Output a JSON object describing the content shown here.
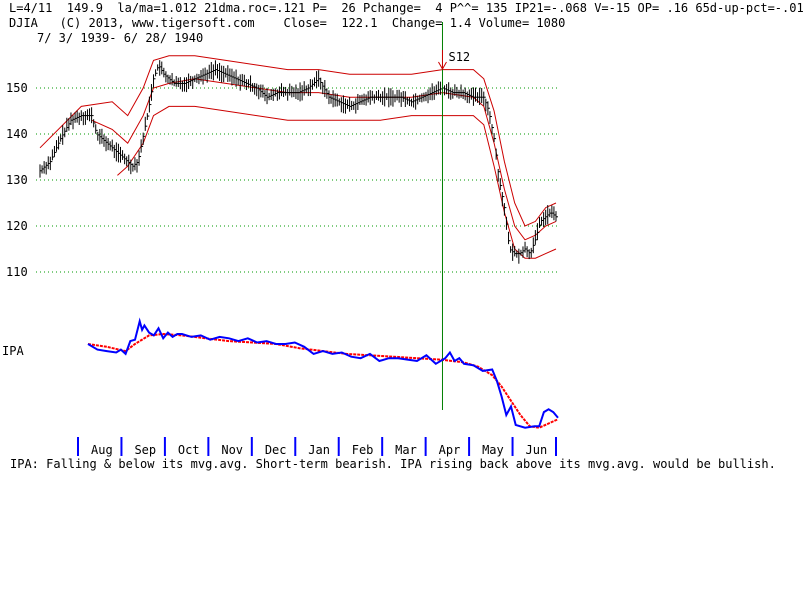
{
  "header": {
    "line1": "L=4/11  149.9  la/ma=1.012 21dma.roc=.121 P=  26 Pchange=  4 P^^= 135 IP21=-.068 V=-15 OP= .16 65d-up-pct=-.01",
    "line2": "DJIA   (C) 2013, www.tigersoft.com    Close=  122.1  Change= 1.4 Volume= 1080",
    "line3": "7/ 3/ 1939- 6/ 28/ 1940"
  },
  "footer": {
    "message": "IPA: Falling & below its mvg.avg. Short-term bearish. IPA rising back above its mvg.avg. would be bullish."
  },
  "colors": {
    "grid": "#009900",
    "bars": "#000000",
    "bands": "#cc0000",
    "ipa": "#0000ff",
    "ipa_ma": "#ff0000",
    "signal_line": "#008000",
    "month_ticks": "#0000ff",
    "signal_arrow": "#cc0000"
  },
  "chart_data": [
    {
      "type": "line",
      "name": "price",
      "ylim": [
        108,
        160
      ],
      "yticks": [
        110,
        120,
        130,
        140,
        150
      ],
      "grid": true,
      "months": [
        "Aug",
        "Sep",
        "Oct",
        "Nov",
        "Dec",
        "Jan",
        "Feb",
        "Mar",
        "Apr",
        "May",
        "Jun"
      ],
      "signal": {
        "label": "S12",
        "x_fraction": 0.78
      },
      "close_points": [
        [
          0.0,
          132
        ],
        [
          0.02,
          134
        ],
        [
          0.04,
          139
        ],
        [
          0.06,
          143
        ],
        [
          0.08,
          144
        ],
        [
          0.1,
          144
        ],
        [
          0.11,
          140
        ],
        [
          0.13,
          138
        ],
        [
          0.15,
          136
        ],
        [
          0.17,
          134
        ],
        [
          0.18,
          133
        ],
        [
          0.19,
          134
        ],
        [
          0.21,
          145
        ],
        [
          0.22,
          152
        ],
        [
          0.23,
          155
        ],
        [
          0.24,
          153
        ],
        [
          0.26,
          151
        ],
        [
          0.28,
          151
        ],
        [
          0.3,
          152
        ],
        [
          0.32,
          153
        ],
        [
          0.34,
          154
        ],
        [
          0.36,
          153
        ],
        [
          0.38,
          152
        ],
        [
          0.4,
          151
        ],
        [
          0.42,
          150
        ],
        [
          0.44,
          148
        ],
        [
          0.46,
          149
        ],
        [
          0.48,
          149
        ],
        [
          0.5,
          149
        ],
        [
          0.52,
          150
        ],
        [
          0.54,
          152
        ],
        [
          0.56,
          148
        ],
        [
          0.58,
          147
        ],
        [
          0.6,
          146
        ],
        [
          0.62,
          147
        ],
        [
          0.64,
          148
        ],
        [
          0.66,
          148
        ],
        [
          0.68,
          148
        ],
        [
          0.7,
          148
        ],
        [
          0.72,
          147
        ],
        [
          0.74,
          148
        ],
        [
          0.76,
          149
        ],
        [
          0.78,
          150
        ],
        [
          0.8,
          149
        ],
        [
          0.82,
          149
        ],
        [
          0.84,
          148
        ],
        [
          0.86,
          148
        ],
        [
          0.87,
          145
        ],
        [
          0.88,
          139
        ],
        [
          0.89,
          130
        ],
        [
          0.9,
          124
        ],
        [
          0.91,
          115
        ],
        [
          0.92,
          114
        ],
        [
          0.93,
          114
        ],
        [
          0.94,
          115
        ],
        [
          0.95,
          114
        ],
        [
          0.96,
          117
        ],
        [
          0.97,
          121
        ],
        [
          0.98,
          122
        ],
        [
          0.99,
          123
        ],
        [
          1.0,
          122
        ]
      ],
      "band_upper": [
        [
          0.0,
          137
        ],
        [
          0.08,
          146
        ],
        [
          0.14,
          147
        ],
        [
          0.17,
          144
        ],
        [
          0.2,
          150
        ],
        [
          0.22,
          156
        ],
        [
          0.25,
          157
        ],
        [
          0.3,
          157
        ],
        [
          0.36,
          156
        ],
        [
          0.42,
          155
        ],
        [
          0.48,
          154
        ],
        [
          0.54,
          154
        ],
        [
          0.6,
          153
        ],
        [
          0.66,
          153
        ],
        [
          0.72,
          153
        ],
        [
          0.78,
          154
        ],
        [
          0.84,
          154
        ],
        [
          0.86,
          152
        ],
        [
          0.88,
          145
        ],
        [
          0.9,
          134
        ],
        [
          0.92,
          125
        ],
        [
          0.94,
          120
        ],
        [
          0.96,
          121
        ],
        [
          0.98,
          124
        ],
        [
          1.0,
          125
        ]
      ],
      "band_middle": [
        [
          0.1,
          143
        ],
        [
          0.14,
          141
        ],
        [
          0.17,
          138
        ],
        [
          0.2,
          144
        ],
        [
          0.22,
          150
        ],
        [
          0.25,
          151
        ],
        [
          0.3,
          152
        ],
        [
          0.36,
          151
        ],
        [
          0.42,
          150
        ],
        [
          0.48,
          149
        ],
        [
          0.54,
          149
        ],
        [
          0.6,
          148
        ],
        [
          0.66,
          148
        ],
        [
          0.72,
          148
        ],
        [
          0.78,
          149
        ],
        [
          0.84,
          148
        ],
        [
          0.86,
          146
        ],
        [
          0.88,
          138
        ],
        [
          0.9,
          128
        ],
        [
          0.92,
          120
        ],
        [
          0.94,
          117
        ],
        [
          0.96,
          118
        ],
        [
          0.98,
          120
        ],
        [
          1.0,
          121
        ]
      ],
      "band_lower": [
        [
          0.15,
          131
        ],
        [
          0.17,
          133
        ],
        [
          0.2,
          138
        ],
        [
          0.22,
          144
        ],
        [
          0.25,
          146
        ],
        [
          0.3,
          146
        ],
        [
          0.36,
          145
        ],
        [
          0.42,
          144
        ],
        [
          0.48,
          143
        ],
        [
          0.54,
          143
        ],
        [
          0.6,
          143
        ],
        [
          0.66,
          143
        ],
        [
          0.72,
          144
        ],
        [
          0.78,
          144
        ],
        [
          0.84,
          144
        ],
        [
          0.86,
          142
        ],
        [
          0.88,
          133
        ],
        [
          0.9,
          123
        ],
        [
          0.92,
          115
        ],
        [
          0.94,
          113
        ],
        [
          0.96,
          113
        ],
        [
          0.98,
          114
        ],
        [
          1.0,
          115
        ]
      ]
    },
    {
      "type": "line",
      "name": "IPA",
      "ylabel": "IPA",
      "ylim": [
        0,
        100
      ],
      "ipa_points": [
        [
          0.0,
          62
        ],
        [
          0.02,
          58
        ],
        [
          0.04,
          57
        ],
        [
          0.06,
          56
        ],
        [
          0.07,
          58
        ],
        [
          0.08,
          55
        ],
        [
          0.09,
          64
        ],
        [
          0.1,
          65
        ],
        [
          0.11,
          78
        ],
        [
          0.115,
          72
        ],
        [
          0.12,
          75
        ],
        [
          0.13,
          70
        ],
        [
          0.14,
          68
        ],
        [
          0.15,
          73
        ],
        [
          0.16,
          66
        ],
        [
          0.17,
          70
        ],
        [
          0.18,
          67
        ],
        [
          0.19,
          69
        ],
        [
          0.2,
          69
        ],
        [
          0.22,
          67
        ],
        [
          0.24,
          68
        ],
        [
          0.26,
          65
        ],
        [
          0.28,
          67
        ],
        [
          0.3,
          66
        ],
        [
          0.32,
          64
        ],
        [
          0.34,
          66
        ],
        [
          0.36,
          63
        ],
        [
          0.38,
          64
        ],
        [
          0.4,
          62
        ],
        [
          0.42,
          62
        ],
        [
          0.44,
          63
        ],
        [
          0.46,
          60
        ],
        [
          0.48,
          55
        ],
        [
          0.5,
          57
        ],
        [
          0.52,
          55
        ],
        [
          0.54,
          56
        ],
        [
          0.56,
          53
        ],
        [
          0.58,
          52
        ],
        [
          0.6,
          55
        ],
        [
          0.62,
          50
        ],
        [
          0.64,
          52
        ],
        [
          0.66,
          52
        ],
        [
          0.68,
          51
        ],
        [
          0.7,
          50
        ],
        [
          0.72,
          54
        ],
        [
          0.74,
          48
        ],
        [
          0.76,
          52
        ],
        [
          0.77,
          56
        ],
        [
          0.78,
          50
        ],
        [
          0.79,
          52
        ],
        [
          0.8,
          48
        ],
        [
          0.82,
          47
        ],
        [
          0.84,
          43
        ],
        [
          0.86,
          44
        ],
        [
          0.87,
          36
        ],
        [
          0.88,
          25
        ],
        [
          0.89,
          12
        ],
        [
          0.9,
          18
        ],
        [
          0.91,
          5
        ],
        [
          0.93,
          3
        ],
        [
          0.95,
          4
        ],
        [
          0.96,
          4
        ],
        [
          0.97,
          14
        ],
        [
          0.98,
          16
        ],
        [
          0.99,
          14
        ],
        [
          1.0,
          10
        ]
      ],
      "ipa_ma_points": [
        [
          0.0,
          62
        ],
        [
          0.04,
          60
        ],
        [
          0.08,
          57
        ],
        [
          0.1,
          62
        ],
        [
          0.13,
          68
        ],
        [
          0.16,
          69
        ],
        [
          0.2,
          68
        ],
        [
          0.25,
          66
        ],
        [
          0.3,
          64
        ],
        [
          0.35,
          63
        ],
        [
          0.4,
          62
        ],
        [
          0.45,
          59
        ],
        [
          0.5,
          57
        ],
        [
          0.55,
          55
        ],
        [
          0.6,
          54
        ],
        [
          0.65,
          53
        ],
        [
          0.7,
          52
        ],
        [
          0.75,
          51
        ],
        [
          0.8,
          49
        ],
        [
          0.83,
          46
        ],
        [
          0.86,
          40
        ],
        [
          0.88,
          32
        ],
        [
          0.9,
          22
        ],
        [
          0.92,
          12
        ],
        [
          0.94,
          4
        ],
        [
          0.96,
          3
        ],
        [
          0.98,
          6
        ],
        [
          1.0,
          9
        ]
      ]
    }
  ]
}
